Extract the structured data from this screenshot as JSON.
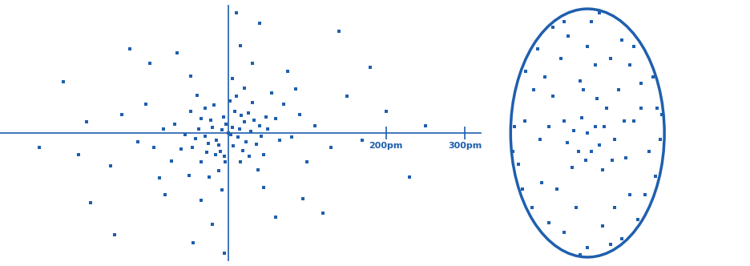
{
  "chart_data": [
    {
      "type": "scatter",
      "color": "#1f5fae",
      "marker": "square",
      "tick_labels": "x",
      "xlim": [
        -290,
        320
      ],
      "ylim": [
        -175,
        175
      ],
      "xticks": [
        {
          "value": 200,
          "label": "200pm"
        },
        {
          "value": 300,
          "label": "300pm"
        }
      ],
      "yticks": [],
      "x": [
        0,
        5,
        -8,
        12,
        -15,
        20,
        -22,
        18,
        -10,
        28,
        -30,
        8,
        -5,
        35,
        -35,
        25,
        -28,
        40,
        -42,
        15,
        -18,
        45,
        -48,
        30,
        -35,
        50,
        -55,
        10,
        -12,
        60,
        -60,
        38,
        -40,
        65,
        -68,
        20,
        -25,
        70,
        -72,
        55,
        -50,
        80,
        -82,
        5,
        -8,
        90,
        -95,
        45,
        -48,
        100,
        -105,
        30,
        -35,
        110,
        -115,
        75,
        -80,
        130,
        -135,
        15,
        -20,
        150,
        -150,
        60,
        -65,
        170,
        -180,
        40,
        -45,
        200,
        -190,
        120,
        -125,
        230,
        -210,
        10,
        -5,
        180,
        -175,
        3,
        -3,
        14,
        -12,
        22,
        -20,
        6,
        -6,
        32,
        -26,
        16,
        -16,
        42,
        -38,
        26,
        -30,
        48,
        -46,
        2,
        -4,
        85,
        -88,
        250,
        -240,
        140,
        -145,
        95,
        -100
      ],
      "values": [
        0,
        8,
        4,
        -6,
        -10,
        15,
        18,
        -24,
        -25,
        2,
        -4,
        30,
        -32,
        -15,
        20,
        28,
        -26,
        10,
        -8,
        -40,
        38,
        -30,
        30,
        42,
        -40,
        5,
        -2,
        50,
        -52,
        20,
        -22,
        -50,
        52,
        -10,
        12,
        62,
        -60,
        40,
        -38,
        55,
        -58,
        -5,
        5,
        75,
        -78,
        25,
        -20,
        -75,
        78,
        -40,
        40,
        95,
        -92,
        10,
        -12,
        85,
        -85,
        -20,
        25,
        120,
        -125,
        50,
        -45,
        -115,
        110,
        -10,
        15,
        150,
        -150,
        30,
        -30,
        -110,
        115,
        -60,
        70,
        165,
        -165,
        90,
        -95,
        -2,
        12,
        6,
        -16,
        -12,
        8,
        -18,
        22,
        18,
        -14,
        24,
        -30,
        -4,
        6,
        -32,
        34,
        22,
        -20,
        44,
        -40,
        60,
        -62,
        10,
        -20,
        140,
        -140,
        -90,
        95
      ]
    },
    {
      "type": "scatter",
      "color": "#1f5fae",
      "marker": "square",
      "tick_labels": false,
      "xlim": [
        -1.05,
        1.05
      ],
      "ylim": [
        -1.05,
        1.05
      ],
      "xticks": [],
      "yticks": [],
      "x": [
        0,
        0.1,
        -0.08,
        0.15,
        -0.12,
        0.25,
        -0.3,
        0.2,
        -0.2,
        0.35,
        -0.05,
        0.4,
        -0.45,
        0.5,
        -0.4,
        0.1,
        -0.15,
        0.6,
        -0.62,
        0.3,
        -0.35,
        0.55,
        -0.6,
        0.7,
        -0.7,
        0.2,
        -0.25,
        0.8,
        -0.82,
        0.45,
        -0.5,
        0.75,
        -0.72,
        0.9,
        -0.9,
        0.05,
        0.0,
        0.6,
        -0.65,
        0.65,
        0.95,
        -0.95,
        0.3,
        -0.3,
        0.85,
        -0.85,
        0.45,
        -0.45,
        0.05,
        -0.18,
        0.22,
        -0.02,
        0.12,
        -0.26,
        0.32,
        -0.1,
        0.48,
        -0.5,
        0.0,
        0.35,
        -0.55,
        0.7,
        -0.3,
        0.88,
        -0.8,
        0.15,
        -0.1,
        0.97,
        -0.97,
        0.55
      ],
      "values": [
        0,
        0.05,
        0.12,
        -0.1,
        -0.15,
        0.2,
        0.1,
        -0.3,
        -0.28,
        -0.05,
        0.35,
        0.35,
        0.3,
        -0.2,
        -0.45,
        0.55,
        -0.6,
        0.1,
        -0.05,
        0.6,
        0.6,
        -0.5,
        -0.4,
        0.4,
        0.35,
        -0.75,
        0.78,
        -0.15,
        0.1,
        0.75,
        -0.72,
        -0.5,
        -0.6,
        0.2,
        -0.25,
        0.9,
        -0.92,
        0.7,
        0.68,
        -0.7,
        -0.05,
        0.05,
        -0.9,
        0.9,
        0.45,
        -0.45,
        -0.85,
        0.85,
        -0.15,
        0.02,
        0.05,
        -0.22,
        0.28,
        -0.08,
        -0.22,
        0.42,
        0.1,
        0.05,
        0.7,
        -0.6,
        0.45,
        0.2,
        -0.8,
        -0.35,
        0.5,
        0.97,
        -0.98,
        0.15,
        -0.15,
        0.55
      ]
    }
  ]
}
